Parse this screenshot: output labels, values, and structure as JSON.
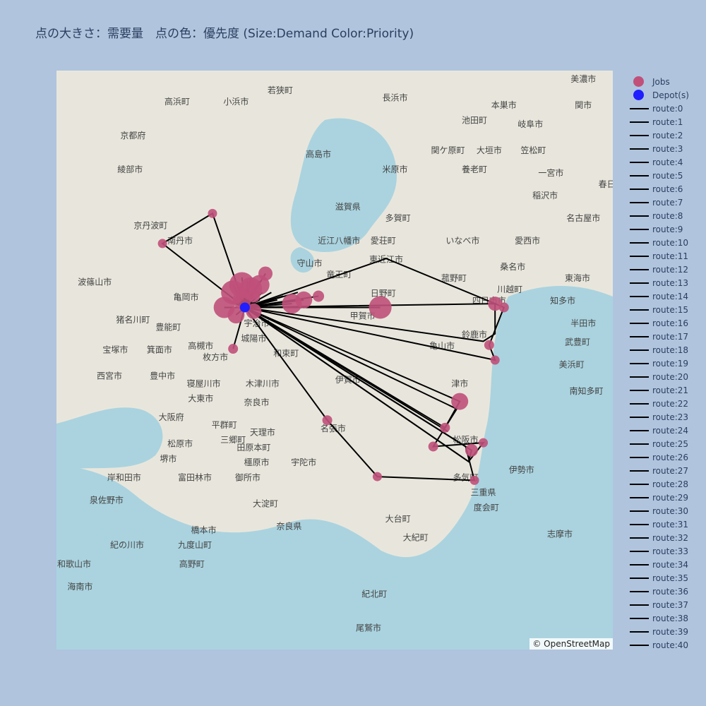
{
  "title": "点の大きさ：需要量　点の色：優先度 (Size:Demand Color:Priority)",
  "attribution": "© OpenStreetMap",
  "colors": {
    "jobs": "#c0507a",
    "depot": "#1f1fff",
    "route": "#000000",
    "water": "#aad3df",
    "land": "#e8e6dc"
  },
  "legend": {
    "jobs_label": "Jobs",
    "depot_label": "Depot(s)",
    "routes": [
      "route:0",
      "route:1",
      "route:2",
      "route:3",
      "route:4",
      "route:5",
      "route:6",
      "route:7",
      "route:8",
      "route:9",
      "route:10",
      "route:11",
      "route:12",
      "route:13",
      "route:14",
      "route:15",
      "route:16",
      "route:17",
      "route:18",
      "route:19",
      "route:20",
      "route:21",
      "route:22",
      "route:23",
      "route:24",
      "route:25",
      "route:26",
      "route:27",
      "route:28",
      "route:29",
      "route:30",
      "route:31",
      "route:32",
      "route:33",
      "route:34",
      "route:35",
      "route:36",
      "route:37",
      "route:38",
      "route:39",
      "route:40"
    ]
  },
  "map_labels": [
    {
      "text": "若狭町",
      "lon": 135.89,
      "lat": 35.5
    },
    {
      "text": "小浜市",
      "lon": 135.74,
      "lat": 35.47
    },
    {
      "text": "高浜町",
      "lon": 135.54,
      "lat": 35.47
    },
    {
      "text": "京都府",
      "lon": 135.39,
      "lat": 35.38
    },
    {
      "text": "綾部市",
      "lon": 135.38,
      "lat": 35.29
    },
    {
      "text": "南丹市",
      "lon": 135.55,
      "lat": 35.1
    },
    {
      "text": "京丹波町",
      "lon": 135.45,
      "lat": 35.14
    },
    {
      "text": "波篠山市",
      "lon": 135.26,
      "lat": 34.99
    },
    {
      "text": "亀岡市",
      "lon": 135.57,
      "lat": 34.95
    },
    {
      "text": "猪名川町",
      "lon": 135.39,
      "lat": 34.89
    },
    {
      "text": "豊能町",
      "lon": 135.51,
      "lat": 34.87
    },
    {
      "text": "宝塚市",
      "lon": 135.33,
      "lat": 34.81
    },
    {
      "text": "箕面市",
      "lon": 135.48,
      "lat": 34.81
    },
    {
      "text": "高槻市",
      "lon": 135.62,
      "lat": 34.82
    },
    {
      "text": "西宮市",
      "lon": 135.31,
      "lat": 34.74
    },
    {
      "text": "豊中市",
      "lon": 135.49,
      "lat": 34.74
    },
    {
      "text": "枚方市",
      "lon": 135.67,
      "lat": 34.79
    },
    {
      "text": "寝屋川市",
      "lon": 135.63,
      "lat": 34.72
    },
    {
      "text": "大東市",
      "lon": 135.62,
      "lat": 34.68
    },
    {
      "text": "大阪府",
      "lon": 135.52,
      "lat": 34.63
    },
    {
      "text": "平群町",
      "lon": 135.7,
      "lat": 34.61
    },
    {
      "text": "三郷町",
      "lon": 135.73,
      "lat": 34.57
    },
    {
      "text": "松原市",
      "lon": 135.55,
      "lat": 34.56
    },
    {
      "text": "堺市",
      "lon": 135.51,
      "lat": 34.52
    },
    {
      "text": "田原本町",
      "lon": 135.8,
      "lat": 34.55
    },
    {
      "text": "橿原市",
      "lon": 135.81,
      "lat": 34.51
    },
    {
      "text": "富田林市",
      "lon": 135.6,
      "lat": 34.47
    },
    {
      "text": "御所市",
      "lon": 135.78,
      "lat": 34.47
    },
    {
      "text": "岸和田市",
      "lon": 135.36,
      "lat": 34.47
    },
    {
      "text": "泉佐野市",
      "lon": 135.3,
      "lat": 34.41
    },
    {
      "text": "大淀町",
      "lon": 135.84,
      "lat": 34.4
    },
    {
      "text": "奈良県",
      "lon": 135.92,
      "lat": 34.34
    },
    {
      "text": "橋本市",
      "lon": 135.63,
      "lat": 34.33
    },
    {
      "text": "九度山町",
      "lon": 135.6,
      "lat": 34.29
    },
    {
      "text": "紀の川市",
      "lon": 135.37,
      "lat": 34.29
    },
    {
      "text": "高野町",
      "lon": 135.59,
      "lat": 34.24
    },
    {
      "text": "和歌山市",
      "lon": 135.19,
      "lat": 34.24
    },
    {
      "text": "海南市",
      "lon": 135.21,
      "lat": 34.18
    },
    {
      "text": "長浜市",
      "lon": 136.28,
      "lat": 35.48
    },
    {
      "text": "高島市",
      "lon": 136.02,
      "lat": 35.33
    },
    {
      "text": "米原市",
      "lon": 136.28,
      "lat": 35.29
    },
    {
      "text": "滋賀県",
      "lon": 136.12,
      "lat": 35.19
    },
    {
      "text": "多賀町",
      "lon": 136.29,
      "lat": 35.16
    },
    {
      "text": "近江八幡市",
      "lon": 136.09,
      "lat": 35.1
    },
    {
      "text": "愛荘町",
      "lon": 136.24,
      "lat": 35.1
    },
    {
      "text": "東近江市",
      "lon": 136.25,
      "lat": 35.05
    },
    {
      "text": "守山市",
      "lon": 135.99,
      "lat": 35.04
    },
    {
      "text": "竜王町",
      "lon": 136.09,
      "lat": 35.01
    },
    {
      "text": "日野町",
      "lon": 136.24,
      "lat": 34.96
    },
    {
      "text": "甲賀市",
      "lon": 136.17,
      "lat": 34.9
    },
    {
      "text": "宇治市",
      "lon": 135.81,
      "lat": 34.88
    },
    {
      "text": "城陽市",
      "lon": 135.8,
      "lat": 34.84
    },
    {
      "text": "和束町",
      "lon": 135.91,
      "lat": 34.8
    },
    {
      "text": "木津川市",
      "lon": 135.83,
      "lat": 34.72
    },
    {
      "text": "伊賀市",
      "lon": 136.12,
      "lat": 34.73
    },
    {
      "text": "奈良市",
      "lon": 135.81,
      "lat": 34.67
    },
    {
      "text": "名張市",
      "lon": 136.07,
      "lat": 34.6
    },
    {
      "text": "天理市",
      "lon": 135.83,
      "lat": 34.59
    },
    {
      "text": "宇陀市",
      "lon": 135.97,
      "lat": 34.51
    },
    {
      "text": "本巣市",
      "lon": 136.65,
      "lat": 35.46
    },
    {
      "text": "関市",
      "lon": 136.92,
      "lat": 35.46
    },
    {
      "text": "池田町",
      "lon": 136.55,
      "lat": 35.42
    },
    {
      "text": "岐阜市",
      "lon": 136.74,
      "lat": 35.41
    },
    {
      "text": "関ケ原町",
      "lon": 136.46,
      "lat": 35.34
    },
    {
      "text": "大垣市",
      "lon": 136.6,
      "lat": 35.34
    },
    {
      "text": "笠松町",
      "lon": 136.75,
      "lat": 35.34
    },
    {
      "text": "養老町",
      "lon": 136.55,
      "lat": 35.29
    },
    {
      "text": "一宮市",
      "lon": 136.81,
      "lat": 35.28
    },
    {
      "text": "稲沢市",
      "lon": 136.79,
      "lat": 35.22
    },
    {
      "text": "いなべ市",
      "lon": 136.51,
      "lat": 35.1
    },
    {
      "text": "名古屋市",
      "lon": 136.92,
      "lat": 35.16
    },
    {
      "text": "愛西市",
      "lon": 136.73,
      "lat": 35.1
    },
    {
      "text": "桑名市",
      "lon": 136.68,
      "lat": 35.03
    },
    {
      "text": "菰野町",
      "lon": 136.48,
      "lat": 35.0
    },
    {
      "text": "東海市",
      "lon": 136.9,
      "lat": 35.0
    },
    {
      "text": "川越町",
      "lon": 136.67,
      "lat": 34.97
    },
    {
      "text": "四日市市",
      "lon": 136.6,
      "lat": 34.94
    },
    {
      "text": "知多市",
      "lon": 136.85,
      "lat": 34.94
    },
    {
      "text": "鈴鹿市",
      "lon": 136.55,
      "lat": 34.85
    },
    {
      "text": "亀山市",
      "lon": 136.44,
      "lat": 34.82
    },
    {
      "text": "半田市",
      "lon": 136.92,
      "lat": 34.88
    },
    {
      "text": "武豊町",
      "lon": 136.9,
      "lat": 34.83
    },
    {
      "text": "美浜町",
      "lon": 136.88,
      "lat": 34.77
    },
    {
      "text": "南知多町",
      "lon": 136.93,
      "lat": 34.7
    },
    {
      "text": "津市",
      "lon": 136.5,
      "lat": 34.72
    },
    {
      "text": "松阪市",
      "lon": 136.52,
      "lat": 34.57
    },
    {
      "text": "伊勢市",
      "lon": 136.71,
      "lat": 34.49
    },
    {
      "text": "多気町",
      "lon": 136.52,
      "lat": 34.47
    },
    {
      "text": "三重県",
      "lon": 136.58,
      "lat": 34.43
    },
    {
      "text": "度会町",
      "lon": 136.59,
      "lat": 34.39
    },
    {
      "text": "大台町",
      "lon": 136.29,
      "lat": 34.36
    },
    {
      "text": "大紀町",
      "lon": 136.35,
      "lat": 34.31
    },
    {
      "text": "志摩市",
      "lon": 136.84,
      "lat": 34.32
    },
    {
      "text": "紀北町",
      "lon": 136.21,
      "lat": 34.16
    },
    {
      "text": "尾鷲市",
      "lon": 136.19,
      "lat": 34.07
    },
    {
      "text": "美濃市",
      "lon": 136.92,
      "lat": 35.53
    },
    {
      "text": "春日",
      "lon": 137.0,
      "lat": 35.25
    }
  ],
  "depot": {
    "lon": 135.77,
    "lat": 34.93
  },
  "jobs": [
    {
      "lon": 135.76,
      "lat": 34.99,
      "demand": 30
    },
    {
      "lon": 135.73,
      "lat": 34.97,
      "demand": 28
    },
    {
      "lon": 135.79,
      "lat": 34.98,
      "demand": 26
    },
    {
      "lon": 135.82,
      "lat": 34.99,
      "demand": 22
    },
    {
      "lon": 135.84,
      "lat": 35.02,
      "demand": 14
    },
    {
      "lon": 135.7,
      "lat": 34.93,
      "demand": 24
    },
    {
      "lon": 135.74,
      "lat": 34.91,
      "demand": 18
    },
    {
      "lon": 135.8,
      "lat": 34.92,
      "demand": 16
    },
    {
      "lon": 135.76,
      "lat": 34.95,
      "demand": 20
    },
    {
      "lon": 135.8,
      "lat": 34.96,
      "demand": 12
    },
    {
      "lon": 135.97,
      "lat": 34.95,
      "demand": 18
    },
    {
      "lon": 135.93,
      "lat": 34.94,
      "demand": 22
    },
    {
      "lon": 136.02,
      "lat": 34.96,
      "demand": 10
    },
    {
      "lon": 136.23,
      "lat": 34.93,
      "demand": 26
    },
    {
      "lon": 135.73,
      "lat": 34.82,
      "demand": 8
    },
    {
      "lon": 135.66,
      "lat": 35.18,
      "demand": 7
    },
    {
      "lon": 135.49,
      "lat": 35.1,
      "demand": 7
    },
    {
      "lon": 136.62,
      "lat": 34.94,
      "demand": 14
    },
    {
      "lon": 136.65,
      "lat": 34.93,
      "demand": 8
    },
    {
      "lon": 136.6,
      "lat": 34.83,
      "demand": 8
    },
    {
      "lon": 136.62,
      "lat": 34.79,
      "demand": 7
    },
    {
      "lon": 136.5,
      "lat": 34.68,
      "demand": 18
    },
    {
      "lon": 136.45,
      "lat": 34.61,
      "demand": 8
    },
    {
      "lon": 136.41,
      "lat": 34.56,
      "demand": 8
    },
    {
      "lon": 136.54,
      "lat": 34.55,
      "demand": 12
    },
    {
      "lon": 136.58,
      "lat": 34.57,
      "demand": 7
    },
    {
      "lon": 136.05,
      "lat": 34.63,
      "demand": 8
    },
    {
      "lon": 136.22,
      "lat": 34.48,
      "demand": 7
    },
    {
      "lon": 136.55,
      "lat": 34.47,
      "demand": 7
    }
  ],
  "routes": [
    [
      [
        135.77,
        34.93
      ],
      [
        135.97,
        34.95
      ],
      [
        135.77,
        34.93
      ]
    ],
    [
      [
        135.77,
        34.93
      ],
      [
        135.93,
        34.94
      ],
      [
        135.77,
        34.93
      ]
    ],
    [
      [
        135.77,
        34.93
      ],
      [
        136.02,
        34.96
      ],
      [
        135.77,
        34.93
      ]
    ],
    [
      [
        135.77,
        34.93
      ],
      [
        136.23,
        34.93
      ],
      [
        135.77,
        34.93
      ]
    ],
    [
      [
        135.77,
        34.93
      ],
      [
        135.66,
        35.18
      ],
      [
        135.49,
        35.1
      ],
      [
        135.77,
        34.93
      ]
    ],
    [
      [
        135.77,
        34.93
      ],
      [
        136.25,
        35.06
      ],
      [
        136.62,
        34.94
      ],
      [
        136.65,
        34.93
      ],
      [
        136.6,
        34.83
      ],
      [
        136.62,
        34.79
      ],
      [
        135.77,
        34.93
      ]
    ],
    [
      [
        135.77,
        34.93
      ],
      [
        136.62,
        34.94
      ],
      [
        136.62,
        34.86
      ],
      [
        136.58,
        34.84
      ],
      [
        135.77,
        34.93
      ]
    ],
    [
      [
        135.77,
        34.93
      ],
      [
        136.5,
        34.68
      ],
      [
        136.45,
        34.61
      ],
      [
        135.77,
        34.93
      ]
    ],
    [
      [
        135.77,
        34.93
      ],
      [
        136.49,
        34.66
      ],
      [
        136.41,
        34.56
      ],
      [
        136.58,
        34.57
      ],
      [
        136.53,
        34.52
      ],
      [
        135.77,
        34.93
      ]
    ],
    [
      [
        135.77,
        34.93
      ],
      [
        136.54,
        34.55
      ],
      [
        136.53,
        34.52
      ],
      [
        135.77,
        34.93
      ]
    ],
    [
      [
        135.77,
        34.93
      ],
      [
        136.05,
        34.63
      ],
      [
        136.22,
        34.48
      ],
      [
        136.55,
        34.47
      ],
      [
        136.52,
        34.56
      ],
      [
        135.77,
        34.93
      ]
    ],
    [
      [
        135.77,
        34.93
      ],
      [
        136.46,
        34.6
      ],
      [
        135.77,
        34.93
      ]
    ],
    [
      [
        135.77,
        34.93
      ],
      [
        135.73,
        34.82
      ],
      [
        135.77,
        34.93
      ]
    ],
    [
      [
        135.77,
        34.93
      ],
      [
        135.82,
        35.0
      ],
      [
        135.77,
        34.93
      ]
    ],
    [
      [
        135.77,
        34.93
      ],
      [
        135.74,
        35.0
      ],
      [
        135.77,
        34.93
      ]
    ],
    [
      [
        135.77,
        34.93
      ],
      [
        135.84,
        35.02
      ],
      [
        135.77,
        34.93
      ]
    ],
    [
      [
        135.77,
        34.93
      ],
      [
        135.76,
        35.01
      ],
      [
        135.77,
        34.93
      ]
    ],
    [
      [
        135.77,
        34.93
      ],
      [
        135.78,
        35.0
      ],
      [
        135.77,
        34.93
      ]
    ],
    [
      [
        135.77,
        34.93
      ],
      [
        135.8,
        34.98
      ],
      [
        135.77,
        34.93
      ]
    ],
    [
      [
        135.77,
        34.93
      ],
      [
        135.72,
        34.96
      ],
      [
        135.77,
        34.93
      ]
    ],
    [
      [
        135.77,
        34.93
      ],
      [
        135.7,
        34.93
      ],
      [
        135.77,
        34.93
      ]
    ],
    [
      [
        135.77,
        34.93
      ],
      [
        135.74,
        34.91
      ],
      [
        135.77,
        34.93
      ]
    ],
    [
      [
        135.77,
        34.93
      ],
      [
        135.8,
        34.92
      ],
      [
        135.77,
        34.93
      ]
    ],
    [
      [
        135.77,
        34.93
      ],
      [
        135.76,
        34.95
      ],
      [
        135.77,
        34.93
      ]
    ],
    [
      [
        135.77,
        34.93
      ],
      [
        135.8,
        34.96
      ],
      [
        135.77,
        34.93
      ]
    ],
    [
      [
        135.77,
        34.93
      ],
      [
        135.75,
        34.98
      ],
      [
        135.77,
        34.93
      ]
    ],
    [
      [
        135.77,
        34.93
      ],
      [
        135.79,
        35.01
      ],
      [
        135.77,
        34.93
      ]
    ],
    [
      [
        135.77,
        34.93
      ],
      [
        135.81,
        34.99
      ],
      [
        135.77,
        34.93
      ]
    ],
    [
      [
        135.77,
        34.93
      ],
      [
        135.73,
        34.99
      ],
      [
        135.77,
        34.93
      ]
    ],
    [
      [
        135.77,
        34.93
      ],
      [
        135.83,
        34.97
      ],
      [
        135.77,
        34.93
      ]
    ],
    [
      [
        135.77,
        34.93
      ],
      [
        135.71,
        34.95
      ],
      [
        135.77,
        34.93
      ]
    ],
    [
      [
        135.77,
        34.93
      ],
      [
        135.75,
        34.93
      ],
      [
        135.77,
        34.93
      ]
    ],
    [
      [
        135.77,
        34.93
      ],
      [
        135.78,
        34.95
      ],
      [
        135.77,
        34.93
      ]
    ],
    [
      [
        135.77,
        34.93
      ],
      [
        135.79,
        34.94
      ],
      [
        135.77,
        34.93
      ]
    ],
    [
      [
        135.77,
        34.93
      ],
      [
        135.74,
        34.96
      ],
      [
        135.77,
        34.93
      ]
    ],
    [
      [
        135.77,
        34.93
      ],
      [
        135.77,
        34.98
      ],
      [
        135.77,
        34.93
      ]
    ],
    [
      [
        135.77,
        34.93
      ],
      [
        135.82,
        34.95
      ],
      [
        135.77,
        34.93
      ]
    ],
    [
      [
        135.77,
        34.93
      ],
      [
        135.9,
        34.96
      ],
      [
        135.77,
        34.93
      ]
    ],
    [
      [
        135.77,
        34.93
      ],
      [
        135.95,
        34.97
      ],
      [
        135.77,
        34.93
      ]
    ],
    [
      [
        135.77,
        34.93
      ],
      [
        135.86,
        34.97
      ],
      [
        135.77,
        34.93
      ]
    ],
    [
      [
        135.77,
        34.93
      ],
      [
        135.88,
        34.95
      ],
      [
        135.77,
        34.93
      ]
    ]
  ]
}
